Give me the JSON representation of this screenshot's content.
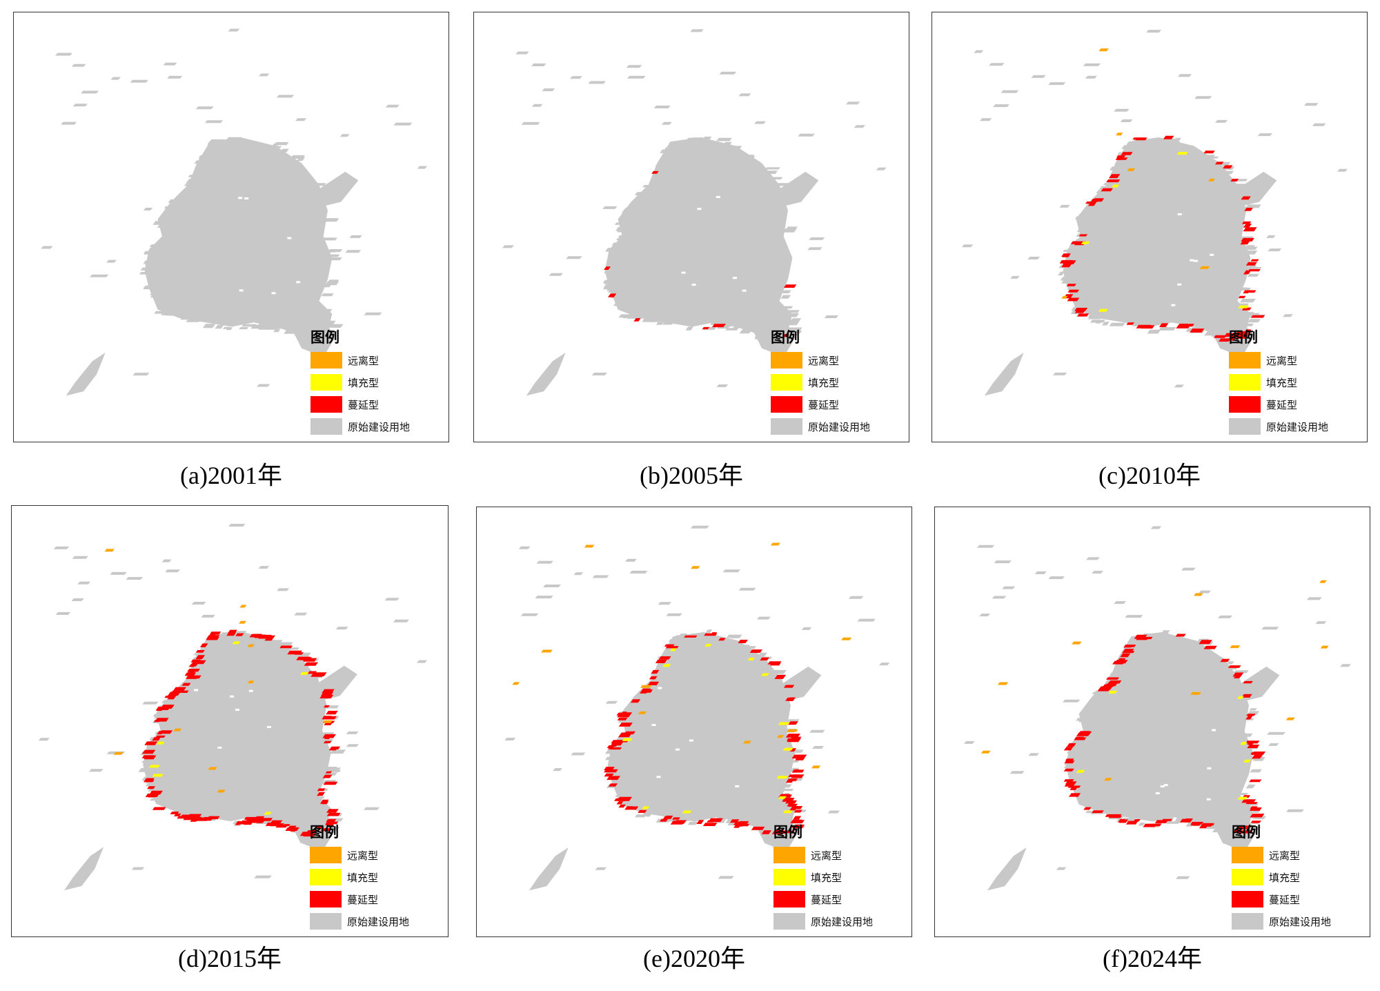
{
  "legend": {
    "title": "图例",
    "items": [
      {
        "label": "远离型",
        "color": "#ffa500"
      },
      {
        "label": "填充型",
        "color": "#ffff00"
      },
      {
        "label": "蔓延型",
        "color": "#ff0000"
      },
      {
        "label": "原始建设用地",
        "color": "#c8c8c8"
      }
    ]
  },
  "panels": [
    {
      "caption": "(a)2001年",
      "outlying": 0,
      "infill": 0,
      "expansion": 0
    },
    {
      "caption": "(b)2005年",
      "outlying": 0,
      "infill": 0,
      "expansion": 8
    },
    {
      "caption": "(c)2010年",
      "outlying": 6,
      "infill": 5,
      "expansion": 70
    },
    {
      "caption": "(d)2015年",
      "outlying": 10,
      "infill": 6,
      "expansion": 130
    },
    {
      "caption": "(e)2020年",
      "outlying": 12,
      "infill": 14,
      "expansion": 110
    },
    {
      "caption": "(f)2024年",
      "outlying": 10,
      "infill": 6,
      "expansion": 85
    }
  ]
}
